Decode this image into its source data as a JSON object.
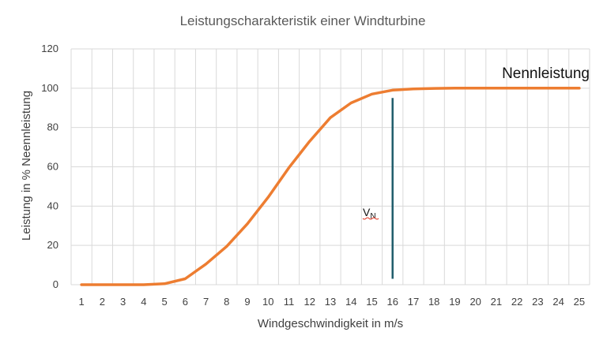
{
  "chart_data": {
    "type": "line",
    "title": "Leistungscharakteristik einer Windturbine",
    "xlabel": "Windgeschwindigkeit in m/s",
    "ylabel": "Leistung in % Neennleistung",
    "x": [
      1,
      2,
      3,
      4,
      5,
      6,
      7,
      8,
      9,
      10,
      11,
      12,
      13,
      14,
      15,
      16,
      17,
      18,
      19,
      20,
      21,
      22,
      23,
      24,
      25
    ],
    "series": [
      {
        "values": [
          0,
          0,
          0,
          0,
          0.5,
          3,
          10.5,
          19.5,
          31,
          44.5,
          59.5,
          73,
          85,
          92.5,
          97,
          99,
          99.6,
          99.9,
          100,
          100,
          100,
          100,
          100,
          100,
          100
        ]
      }
    ],
    "ylim": [
      0,
      120
    ],
    "yticks": [
      0,
      20,
      40,
      60,
      80,
      100,
      120
    ],
    "grid": true,
    "legend": "none",
    "annotations": {
      "rated_power_label": "Nennleistung",
      "rated_speed_label": "V",
      "rated_speed_subscript": "N",
      "rated_speed_x": 16,
      "rated_speed_line_ylim": [
        3,
        95
      ]
    },
    "colors": {
      "line": "#ED7D31",
      "marker_line": "#1F5C6B",
      "grid": "#D9D9D9"
    }
  }
}
